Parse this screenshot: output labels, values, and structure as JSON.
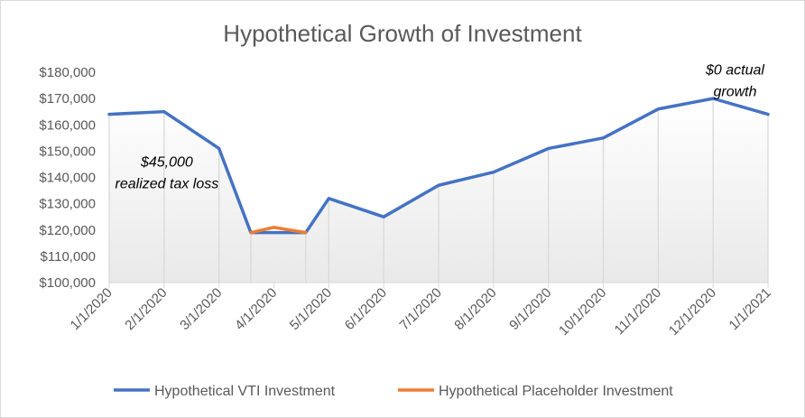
{
  "chart_data": {
    "type": "line",
    "title": "Hypothetical Growth of Investment",
    "xlabel": "",
    "ylabel": "",
    "ylim": [
      100000,
      180000
    ],
    "y_ticks": [
      100000,
      110000,
      120000,
      130000,
      140000,
      150000,
      160000,
      170000,
      180000
    ],
    "y_tick_labels": [
      "$100,000",
      "$110,000",
      "$120,000",
      "$130,000",
      "$140,000",
      "$150,000",
      "$160,000",
      "$170,000",
      "$180,000"
    ],
    "x_tick_labels": [
      "1/1/2020",
      "2/1/2020",
      "3/1/2020",
      "4/1/2020",
      "5/1/2020",
      "6/1/2020",
      "7/1/2020",
      "8/1/2020",
      "9/1/2020",
      "10/1/2020",
      "11/1/2020",
      "12/1/2020",
      "1/1/2021"
    ],
    "x_tick_positions": [
      0,
      1,
      2,
      3,
      4,
      5,
      6,
      7,
      8,
      9,
      10,
      11,
      12
    ],
    "series": [
      {
        "name": "Hypothetical VTI Investment",
        "color": "#4472c4",
        "points": [
          {
            "x": 0,
            "y": 164000
          },
          {
            "x": 1,
            "y": 165000
          },
          {
            "x": 2,
            "y": 151000
          },
          {
            "x": 2.58,
            "y": 119000
          },
          {
            "x": 3.58,
            "y": 119000
          },
          {
            "x": 4,
            "y": 132000
          },
          {
            "x": 5,
            "y": 125000
          },
          {
            "x": 6,
            "y": 137000
          },
          {
            "x": 7,
            "y": 142000
          },
          {
            "x": 8,
            "y": 151000
          },
          {
            "x": 9,
            "y": 155000
          },
          {
            "x": 10,
            "y": 166000
          },
          {
            "x": 11,
            "y": 170000
          },
          {
            "x": 12,
            "y": 164000
          }
        ]
      },
      {
        "name": "Hypothetical Placeholder Investment",
        "color": "#ed7d31",
        "points": [
          {
            "x": 2.58,
            "y": 119000
          },
          {
            "x": 3,
            "y": 121000
          },
          {
            "x": 3.58,
            "y": 119000
          }
        ]
      }
    ],
    "annotations": [
      {
        "lines": [
          "$45,000",
          "realized tax loss"
        ],
        "x": 1.05,
        "y": 140000
      },
      {
        "lines": [
          "$0 actual",
          "growth"
        ],
        "x": 11.4,
        "y": 175000
      }
    ],
    "legend_position": "bottom",
    "grid": "vertical drop lines"
  }
}
